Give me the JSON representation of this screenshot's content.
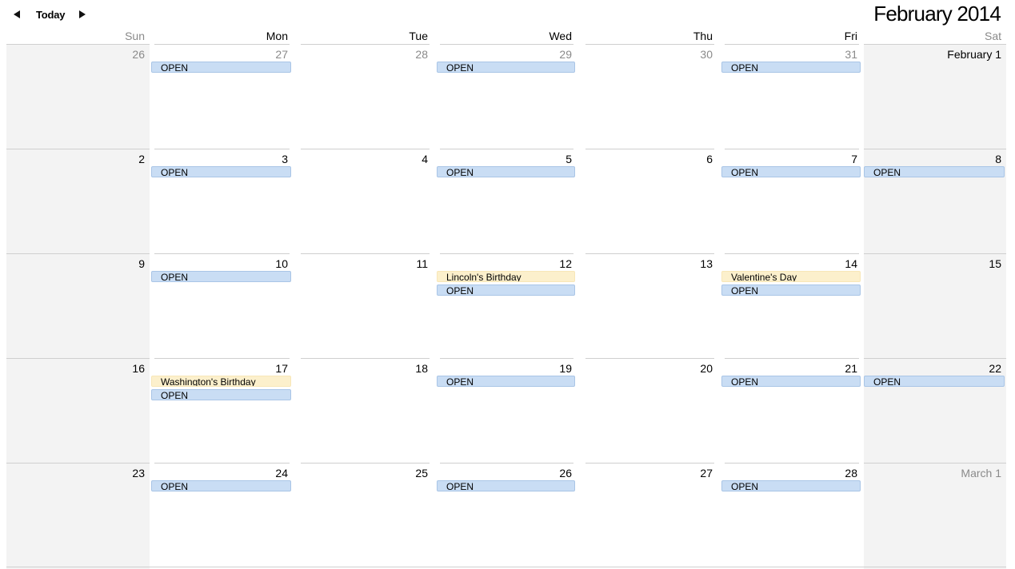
{
  "nav": {
    "prev_icon": "triangle-left",
    "today_label": "Today",
    "next_icon": "triangle-right"
  },
  "title": {
    "month": "February",
    "year": "2014"
  },
  "days_of_week": [
    "Sun",
    "Mon",
    "Tue",
    "Wed",
    "Thu",
    "Fri",
    "Sat"
  ],
  "colors": {
    "open_event": "#c9ddf4",
    "holiday_event": "#fcf0cc",
    "weekend_bg": "#f3f3f3",
    "muted_text": "#8a8a8a"
  },
  "weeks": [
    [
      {
        "label": "26",
        "muted": true,
        "events": []
      },
      {
        "label": "27",
        "muted": true,
        "events": [
          {
            "type": "open",
            "text": "OPEN"
          }
        ]
      },
      {
        "label": "28",
        "muted": true,
        "events": []
      },
      {
        "label": "29",
        "muted": true,
        "events": [
          {
            "type": "open",
            "text": "OPEN"
          }
        ]
      },
      {
        "label": "30",
        "muted": true,
        "events": []
      },
      {
        "label": "31",
        "muted": true,
        "events": [
          {
            "type": "open",
            "text": "OPEN"
          }
        ]
      },
      {
        "label": "February 1",
        "muted": false,
        "events": []
      }
    ],
    [
      {
        "label": "2",
        "muted": false,
        "events": []
      },
      {
        "label": "3",
        "muted": false,
        "events": [
          {
            "type": "open",
            "text": "OPEN"
          }
        ]
      },
      {
        "label": "4",
        "muted": false,
        "events": []
      },
      {
        "label": "5",
        "muted": false,
        "events": [
          {
            "type": "open",
            "text": "OPEN"
          }
        ]
      },
      {
        "label": "6",
        "muted": false,
        "events": []
      },
      {
        "label": "7",
        "muted": false,
        "events": [
          {
            "type": "open",
            "text": "OPEN"
          }
        ]
      },
      {
        "label": "8",
        "muted": false,
        "events": [
          {
            "type": "open",
            "text": "OPEN"
          }
        ]
      }
    ],
    [
      {
        "label": "9",
        "muted": false,
        "events": []
      },
      {
        "label": "10",
        "muted": false,
        "events": [
          {
            "type": "open",
            "text": "OPEN"
          }
        ]
      },
      {
        "label": "11",
        "muted": false,
        "events": []
      },
      {
        "label": "12",
        "muted": false,
        "events": [
          {
            "type": "holiday",
            "text": "Lincoln's Birthday"
          },
          {
            "type": "open",
            "text": "OPEN"
          }
        ]
      },
      {
        "label": "13",
        "muted": false,
        "events": []
      },
      {
        "label": "14",
        "muted": false,
        "events": [
          {
            "type": "holiday",
            "text": "Valentine's Day"
          },
          {
            "type": "open",
            "text": "OPEN"
          }
        ]
      },
      {
        "label": "15",
        "muted": false,
        "events": []
      }
    ],
    [
      {
        "label": "16",
        "muted": false,
        "events": []
      },
      {
        "label": "17",
        "muted": false,
        "events": [
          {
            "type": "holiday",
            "text": "Washington's Birthday"
          },
          {
            "type": "open",
            "text": "OPEN"
          }
        ]
      },
      {
        "label": "18",
        "muted": false,
        "events": []
      },
      {
        "label": "19",
        "muted": false,
        "events": [
          {
            "type": "open",
            "text": "OPEN"
          }
        ]
      },
      {
        "label": "20",
        "muted": false,
        "events": []
      },
      {
        "label": "21",
        "muted": false,
        "events": [
          {
            "type": "open",
            "text": "OPEN"
          }
        ]
      },
      {
        "label": "22",
        "muted": false,
        "events": [
          {
            "type": "open",
            "text": "OPEN"
          }
        ]
      }
    ],
    [
      {
        "label": "23",
        "muted": false,
        "events": []
      },
      {
        "label": "24",
        "muted": false,
        "events": [
          {
            "type": "open",
            "text": "OPEN"
          }
        ]
      },
      {
        "label": "25",
        "muted": false,
        "events": []
      },
      {
        "label": "26",
        "muted": false,
        "events": [
          {
            "type": "open",
            "text": "OPEN"
          }
        ]
      },
      {
        "label": "27",
        "muted": false,
        "events": []
      },
      {
        "label": "28",
        "muted": false,
        "events": [
          {
            "type": "open",
            "text": "OPEN"
          }
        ]
      },
      {
        "label": "March 1",
        "muted": true,
        "events": []
      }
    ]
  ]
}
